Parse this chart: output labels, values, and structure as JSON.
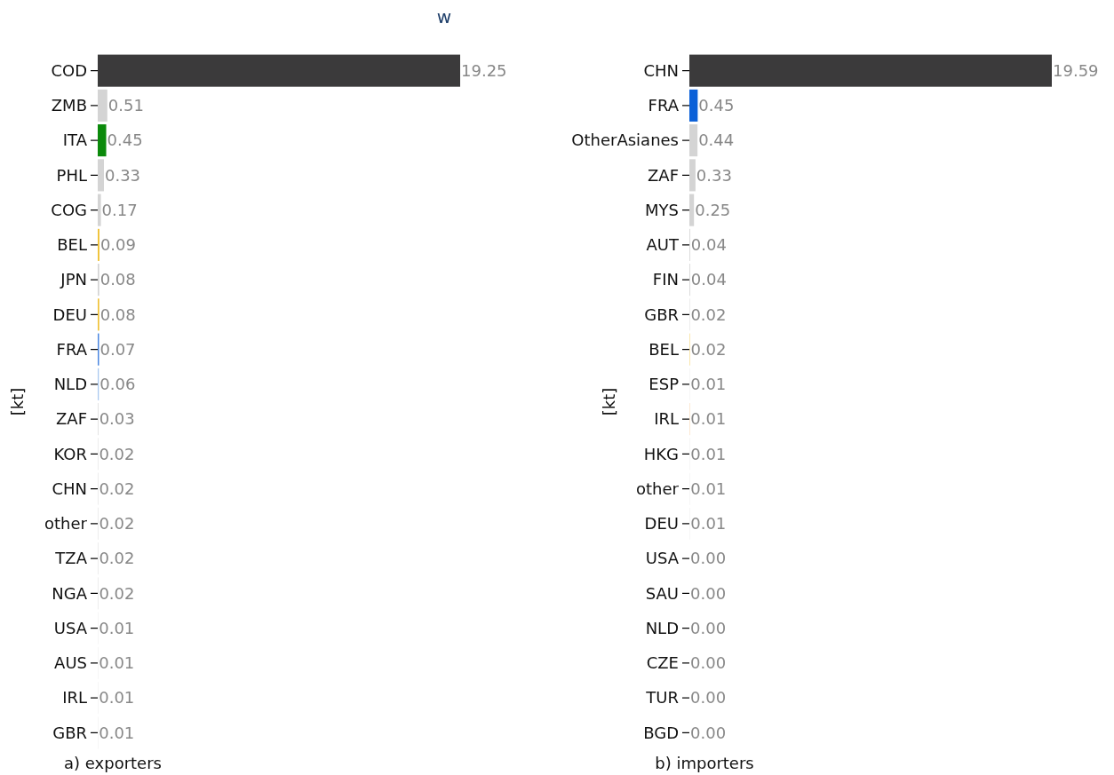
{
  "chart_data": [
    {
      "type": "bar",
      "orientation": "horizontal",
      "title": "w",
      "xlabel": "a) exporters",
      "ylabel": "[kt]",
      "categories": [
        "COD",
        "ZMB",
        "ITA",
        "PHL",
        "COG",
        "BEL",
        "JPN",
        "DEU",
        "FRA",
        "NLD",
        "ZAF",
        "KOR",
        "CHN",
        "other",
        "TZA",
        "NGA",
        "USA",
        "AUS",
        "IRL",
        "GBR"
      ],
      "values": [
        19.25,
        0.51,
        0.45,
        0.33,
        0.17,
        0.09,
        0.08,
        0.08,
        0.07,
        0.06,
        0.03,
        0.02,
        0.02,
        0.02,
        0.02,
        0.02,
        0.01,
        0.01,
        0.01,
        0.01
      ],
      "value_labels": [
        "19.25",
        "0.51",
        "0.45",
        "0.33",
        "0.17",
        "0.09",
        "0.08",
        "0.08",
        "0.07",
        "0.06",
        "0.03",
        "0.02",
        "0.02",
        "0.02",
        "0.02",
        "0.02",
        "0.01",
        "0.01",
        "0.01",
        "0.01"
      ],
      "colors": [
        "#3b3a3b",
        "#d4d4d4",
        "#0b8a0b",
        "#d4d4d4",
        "#d4d4d4",
        "#f0c238",
        "#d4d4d4",
        "#f0c238",
        "#4a86e0",
        "#a9c8f0",
        "#d4d4d4",
        "#d4d4d4",
        "#d4d4d4",
        "#d4d4d4",
        "#d4d4d4",
        "#d4d4d4",
        "#d4d4d4",
        "#d4d4d4",
        "#d4d4d4",
        "#d4d4d4"
      ]
    },
    {
      "type": "bar",
      "orientation": "horizontal",
      "xlabel": "b) importers",
      "ylabel": "[kt]",
      "categories": [
        "CHN",
        "FRA",
        "OtherAsianes",
        "ZAF",
        "MYS",
        "AUT",
        "FIN",
        "GBR",
        "BEL",
        "ESP",
        "IRL",
        "HKG",
        "other",
        "DEU",
        "USA",
        "SAU",
        "NLD",
        "CZE",
        "TUR",
        "BGD"
      ],
      "values": [
        19.59,
        0.45,
        0.44,
        0.33,
        0.25,
        0.04,
        0.04,
        0.02,
        0.02,
        0.01,
        0.01,
        0.01,
        0.01,
        0.01,
        0,
        0,
        0,
        0,
        0,
        0
      ],
      "value_labels": [
        "19.59",
        "0.45",
        "0.44",
        "0.33",
        "0.25",
        "0.04",
        "0.04",
        "0.02",
        "0.02",
        "0.01",
        "0.01",
        "0.01",
        "0.01",
        "0.01",
        "0.00",
        "0.00",
        "0.00",
        "0.00",
        "0.00",
        "0.00"
      ],
      "colors": [
        "#3b3a3b",
        "#0a60d8",
        "#d4d4d4",
        "#d4d4d4",
        "#d4d4d4",
        "#d4d4d4",
        "#d4d4d4",
        "#d4d4d4",
        "#f0c238",
        "#d4d4d4",
        "#f0902a",
        "#d4d4d4",
        "#d4d4d4",
        "#d4d4d4",
        "#d4d4d4",
        "#d4d4d4",
        "#d4d4d4",
        "#d4d4d4",
        "#d4d4d4",
        "#d4d4d4"
      ]
    }
  ]
}
